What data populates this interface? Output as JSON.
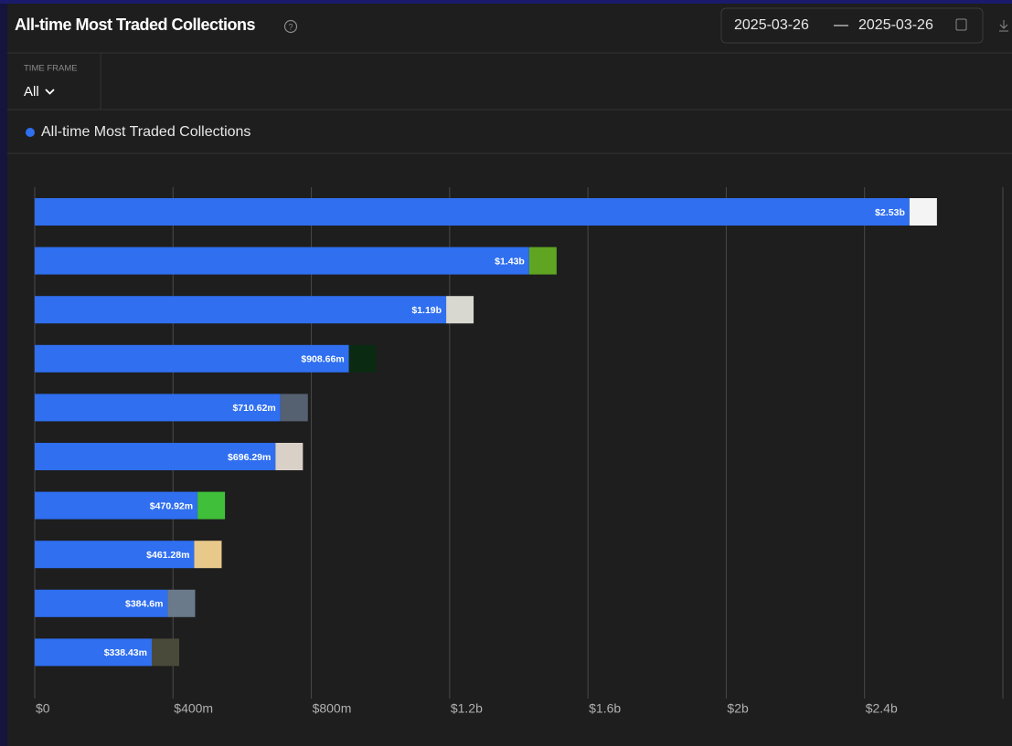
{
  "header": {
    "title": "All-time Most Traded Collections",
    "date_start": "2025-03-26",
    "date_separator": "—",
    "date_end": "2025-03-26"
  },
  "filters": {
    "time_frame_label": "TIME FRAME",
    "time_frame_value": "All"
  },
  "chart_data": {
    "type": "bar",
    "orientation": "horizontal",
    "series": [
      {
        "name": "All-time Most Traded Collections",
        "color": "#2f6ff0",
        "values": [
          2530000000,
          1430000000,
          1190000000,
          908660000,
          710620000,
          696290000,
          470920000,
          461280000,
          384600000,
          338430000
        ],
        "value_labels": [
          "$2.53b",
          "$1.43b",
          "$1.19b",
          "$908.66m",
          "$710.62m",
          "$696.29m",
          "$470.92m",
          "$461.28m",
          "$384.6m",
          "$338.43m"
        ]
      }
    ],
    "xlim": [
      0,
      2800000000
    ],
    "xticks": [
      {
        "value": 0,
        "label": "$0"
      },
      {
        "value": 400000000,
        "label": "$400m"
      },
      {
        "value": 800000000,
        "label": "$800m"
      },
      {
        "value": 1200000000,
        "label": "$1.2b"
      },
      {
        "value": 1600000000,
        "label": "$1.6b"
      },
      {
        "value": 2000000000,
        "label": "$2b"
      },
      {
        "value": 2400000000,
        "label": "$2.4b"
      }
    ],
    "grid": true
  }
}
